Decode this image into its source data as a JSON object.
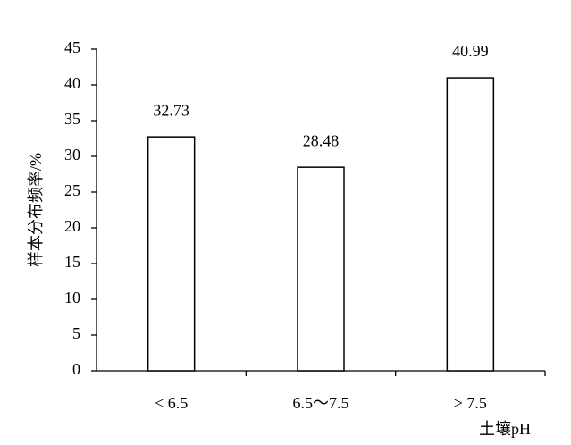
{
  "chart_data": {
    "type": "bar",
    "x_label": "土壤pH",
    "y_label": "样本分布频率/%",
    "categories": [
      "< 6.5",
      "6.5～7.5",
      "> 7.5"
    ],
    "values": [
      32.73,
      28.48,
      40.99
    ],
    "color": "#ffffff",
    "edge_color": "#000000",
    "ylim": [
      0,
      45
    ],
    "yticks": [
      0,
      5,
      10,
      15,
      20,
      25,
      30,
      35,
      40,
      45
    ],
    "grid": false
  }
}
